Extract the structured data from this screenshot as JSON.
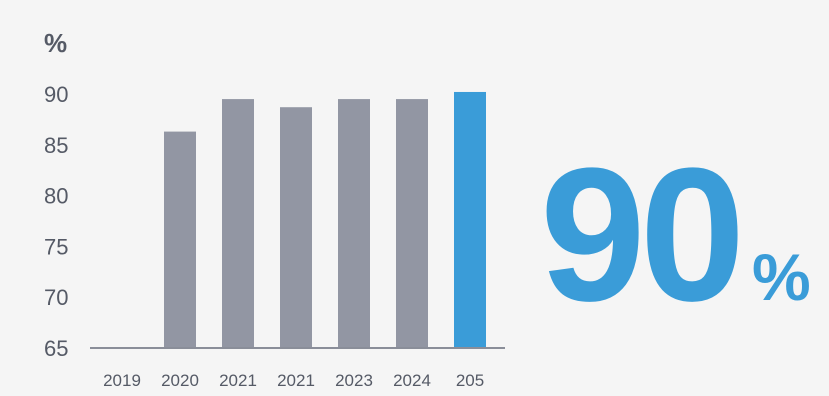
{
  "chart_data": {
    "type": "bar",
    "ylabel": "%",
    "categories": [
      "2019",
      "2020",
      "2021",
      "2021",
      "2023",
      "2024",
      "205"
    ],
    "values": [
      null,
      86.3,
      89.5,
      88.7,
      89.5,
      89.5,
      90.2
    ],
    "ylim": [
      65,
      90
    ],
    "yticks": [
      65,
      70,
      75,
      80,
      85,
      90
    ],
    "grid": false,
    "legend": "none",
    "highlight_index": 6
  },
  "headline": {
    "value": "90",
    "unit": "%"
  },
  "colors": {
    "bar": "#9296a3",
    "highlight": "#3a9cd8",
    "axis": "#8a8e99",
    "text": "#555a66"
  }
}
